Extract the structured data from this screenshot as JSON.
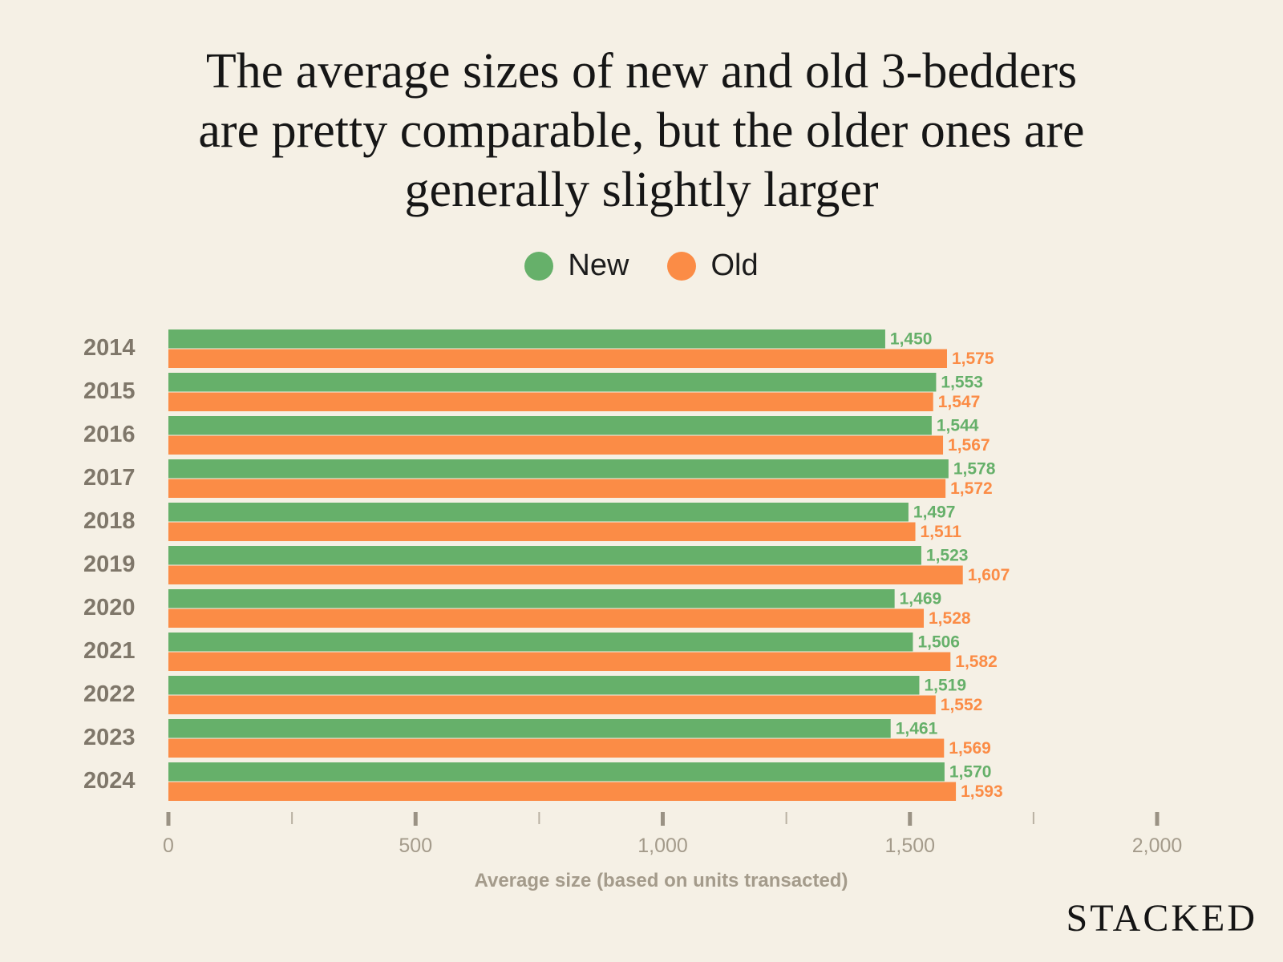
{
  "title_lines": [
    "The average sizes of new and old 3-bedders",
    "are pretty comparable, but the older ones are",
    "generally slightly larger"
  ],
  "legend": {
    "new_label": "New",
    "old_label": "Old"
  },
  "colors": {
    "new": "#66b06a",
    "old": "#fb8c46",
    "axis_text": "#a49b8b",
    "category_text": "#7f776a",
    "background": "#f5f0e5"
  },
  "logo_text": "STACKED",
  "chart_data": {
    "type": "bar",
    "orientation": "horizontal",
    "categories": [
      "2014",
      "2015",
      "2016",
      "2017",
      "2018",
      "2019",
      "2020",
      "2021",
      "2022",
      "2023",
      "2024"
    ],
    "series": [
      {
        "name": "New",
        "values": [
          1450,
          1553,
          1544,
          1578,
          1497,
          1523,
          1469,
          1506,
          1519,
          1461,
          1570
        ]
      },
      {
        "name": "Old",
        "values": [
          1575,
          1547,
          1567,
          1572,
          1511,
          1607,
          1528,
          1582,
          1552,
          1569,
          1593
        ]
      }
    ],
    "data_labels": {
      "New": [
        "1,450",
        "1,553",
        "1,544",
        "1,578",
        "1,497",
        "1,523",
        "1,469",
        "1,506",
        "1,519",
        "1,461",
        "1,570"
      ],
      "Old": [
        "1,575",
        "1,547",
        "1,567",
        "1,572",
        "1,511",
        "1,607",
        "1,528",
        "1,582",
        "1,552",
        "1,569",
        "1,593"
      ]
    },
    "xlim": [
      0,
      2000
    ],
    "xticks": [
      0,
      500,
      1000,
      1500,
      2000
    ],
    "xtick_labels": [
      "0",
      "500",
      "1,000",
      "1,500",
      "2,000"
    ],
    "minor_xticks": [
      250,
      750,
      1250,
      1750
    ],
    "xlabel": "Average size (based on units transacted)",
    "ylabel": "",
    "grid": false,
    "legend_position": "top-center"
  }
}
